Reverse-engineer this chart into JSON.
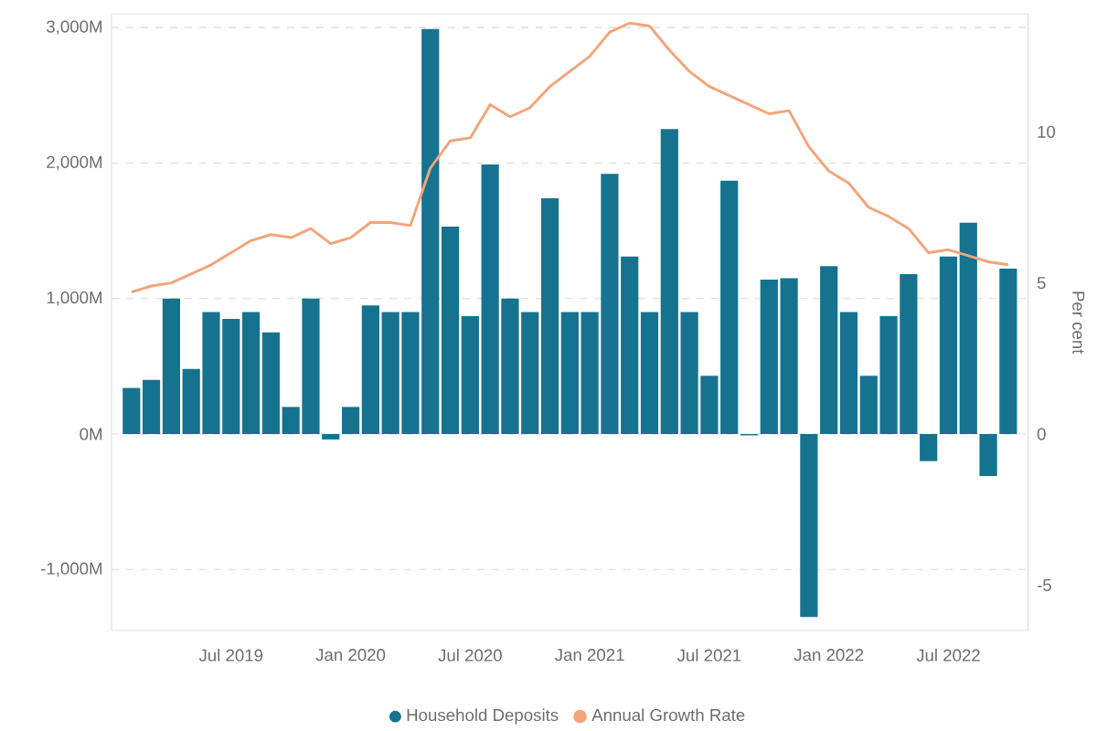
{
  "chart_data": {
    "type": "bar",
    "y2label": "Per cent",
    "x": [
      "2019-02",
      "2019-03",
      "2019-04",
      "2019-05",
      "2019-06",
      "2019-07",
      "2019-08",
      "2019-09",
      "2019-10",
      "2019-11",
      "2019-12",
      "2020-01",
      "2020-02",
      "2020-03",
      "2020-04",
      "2020-05",
      "2020-06",
      "2020-07",
      "2020-08",
      "2020-09",
      "2020-10",
      "2020-11",
      "2020-12",
      "2021-01",
      "2021-02",
      "2021-03",
      "2021-04",
      "2021-05",
      "2021-06",
      "2021-07",
      "2021-08",
      "2021-09",
      "2021-10",
      "2021-11",
      "2021-12",
      "2022-01",
      "2022-02",
      "2022-03",
      "2022-04",
      "2022-05",
      "2022-06",
      "2022-07",
      "2022-08",
      "2022-09",
      "2022-10"
    ],
    "series": [
      {
        "name": "Household Deposits",
        "axis": "y",
        "color": "#16738f",
        "values": [
          340,
          400,
          1000,
          480,
          900,
          850,
          900,
          750,
          200,
          1000,
          -40,
          200,
          950,
          900,
          900,
          2990,
          1530,
          870,
          1990,
          1000,
          900,
          1740,
          900,
          900,
          1920,
          1310,
          900,
          2250,
          900,
          430,
          1870,
          -10,
          1140,
          1150,
          -1350,
          1240,
          900,
          430,
          870,
          1180,
          -200,
          1310,
          1560,
          -310,
          1220
        ]
      },
      {
        "name": "Annual Growth Rate",
        "type": "line",
        "axis": "y2",
        "color": "#f2a57a",
        "values": [
          4.7,
          4.9,
          5.0,
          5.3,
          5.6,
          6.0,
          6.4,
          6.6,
          6.5,
          6.8,
          6.3,
          6.5,
          7.0,
          7.0,
          6.9,
          8.8,
          9.7,
          9.8,
          10.9,
          10.5,
          10.8,
          11.5,
          12.0,
          12.5,
          13.3,
          13.6,
          13.5,
          12.7,
          12.0,
          11.5,
          11.2,
          10.9,
          10.6,
          10.7,
          9.5,
          8.7,
          8.3,
          7.5,
          7.2,
          6.8,
          6.0,
          6.1,
          5.9,
          5.7,
          5.6
        ]
      }
    ],
    "xlim": [
      "2019-01",
      "2022-11"
    ],
    "xticks": [
      {
        "value": "2019-07",
        "label": "Jul 2019"
      },
      {
        "value": "2020-01",
        "label": "Jan 2020"
      },
      {
        "value": "2020-07",
        "label": "Jul 2020"
      },
      {
        "value": "2021-01",
        "label": "Jan 2021"
      },
      {
        "value": "2021-07",
        "label": "Jul 2021"
      },
      {
        "value": "2022-01",
        "label": "Jan 2022"
      },
      {
        "value": "2022-07",
        "label": "Jul 2022"
      }
    ],
    "ylim": [
      -1450,
      3100
    ],
    "yticks": [
      {
        "value": -1000,
        "label": "-1,000M"
      },
      {
        "value": 0,
        "label": "0M"
      },
      {
        "value": 1000,
        "label": "1,000M"
      },
      {
        "value": 2000,
        "label": "2,000M"
      },
      {
        "value": 3000,
        "label": "3,000M"
      }
    ],
    "y2lim": [
      -6.5,
      13.9
    ],
    "y2ticks": [
      -5,
      0,
      5,
      10
    ],
    "grid": "y",
    "legend": "bottom"
  }
}
